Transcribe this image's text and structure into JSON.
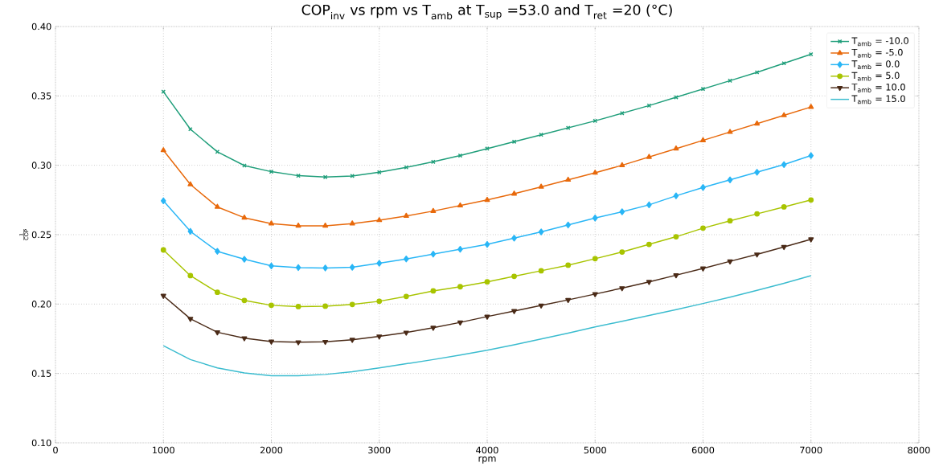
{
  "chart_data": {
    "type": "line",
    "title": "COP$_{inv}$ vs rpm vs T$_{amb}$ at T$_{sup}$ =53.0 and T$_{ret}$ =20 (°C)",
    "xlabel": "rpm",
    "ylabel": "\\frac{1}{\\mathrm{COP}}",
    "x": [
      1000,
      1250,
      1500,
      1750,
      2000,
      2250,
      2500,
      2750,
      3000,
      3250,
      3500,
      3750,
      4000,
      4250,
      4500,
      4750,
      5000,
      5250,
      5500,
      5750,
      6000,
      6250,
      6500,
      6750,
      7000
    ],
    "series": [
      {
        "name": "T$_{amb}$ = -10.0",
        "color": "#1f9e7a",
        "marker": "cross",
        "values": [
          0.353,
          0.326,
          0.3097,
          0.2998,
          0.2954,
          0.2925,
          0.2915,
          0.2923,
          0.295,
          0.2985,
          0.3025,
          0.307,
          0.312,
          0.317,
          0.322,
          0.327,
          0.332,
          0.3375,
          0.343,
          0.349,
          0.355,
          0.361,
          0.367,
          0.3735,
          0.38
        ]
      },
      {
        "name": "T$_{amb}$ = -5.0",
        "color": "#e8690b",
        "marker": "triangle",
        "values": [
          0.3108,
          0.2862,
          0.27,
          0.2622,
          0.258,
          0.2564,
          0.2564,
          0.258,
          0.2604,
          0.2635,
          0.267,
          0.271,
          0.275,
          0.2795,
          0.2845,
          0.2895,
          0.2946,
          0.3,
          0.306,
          0.312,
          0.318,
          0.324,
          0.33,
          0.336,
          0.342
        ]
      },
      {
        "name": "T$_{amb}$ = 0.0",
        "color": "#29b6f6",
        "marker": "diamond",
        "values": [
          0.2744,
          0.2524,
          0.238,
          0.2323,
          0.2275,
          0.2263,
          0.226,
          0.2265,
          0.2294,
          0.2325,
          0.236,
          0.2395,
          0.243,
          0.2475,
          0.252,
          0.257,
          0.262,
          0.2665,
          0.2715,
          0.278,
          0.284,
          0.2895,
          0.295,
          0.3005,
          0.307
        ]
      },
      {
        "name": "T$_{amb}$ = 5.0",
        "color": "#a8c400",
        "marker": "circle",
        "values": [
          0.239,
          0.2205,
          0.2085,
          0.2026,
          0.1991,
          0.1982,
          0.1985,
          0.1997,
          0.202,
          0.2055,
          0.2095,
          0.2125,
          0.216,
          0.22,
          0.224,
          0.228,
          0.2327,
          0.2375,
          0.243,
          0.2485,
          0.2547,
          0.26,
          0.265,
          0.27,
          0.275
        ]
      },
      {
        "name": "T$_{amb}$ = 10.0",
        "color": "#4a2a17",
        "marker": "triangle_down",
        "values": [
          0.206,
          0.1894,
          0.1797,
          0.1754,
          0.173,
          0.1725,
          0.1728,
          0.1743,
          0.1767,
          0.1795,
          0.183,
          0.1868,
          0.191,
          0.195,
          0.199,
          0.203,
          0.2072,
          0.2115,
          0.216,
          0.2208,
          0.2257,
          0.2308,
          0.2358,
          0.2412,
          0.2467
        ]
      },
      {
        "name": "T$_{amb}$ = 15.0",
        "color": "#3bbccf",
        "marker": "none",
        "values": [
          0.17,
          0.16,
          0.154,
          0.1504,
          0.1484,
          0.1484,
          0.1493,
          0.1512,
          0.154,
          0.157,
          0.16,
          0.1633,
          0.1667,
          0.1706,
          0.1748,
          0.179,
          0.1835,
          0.1876,
          0.1918,
          0.196,
          0.2004,
          0.205,
          0.2099,
          0.215,
          0.2205
        ]
      }
    ],
    "xlim": [
      0,
      8000
    ],
    "ylim": [
      0.1,
      0.4
    ],
    "xticks": [
      0,
      1000,
      2000,
      3000,
      4000,
      5000,
      6000,
      7000,
      8000
    ],
    "yticks": [
      {
        "value": 0.1,
        "label": "0.10"
      },
      {
        "value": 0.15,
        "label": "0.15"
      },
      {
        "value": 0.2,
        "label": "0.20"
      },
      {
        "value": 0.25,
        "label": "0.25"
      },
      {
        "value": 0.3,
        "label": "0.30"
      },
      {
        "value": 0.35,
        "label": "0.35"
      },
      {
        "value": 0.4,
        "label": "0.40"
      }
    ],
    "grid": true,
    "legend": "top right",
    "line_style": "solid"
  }
}
